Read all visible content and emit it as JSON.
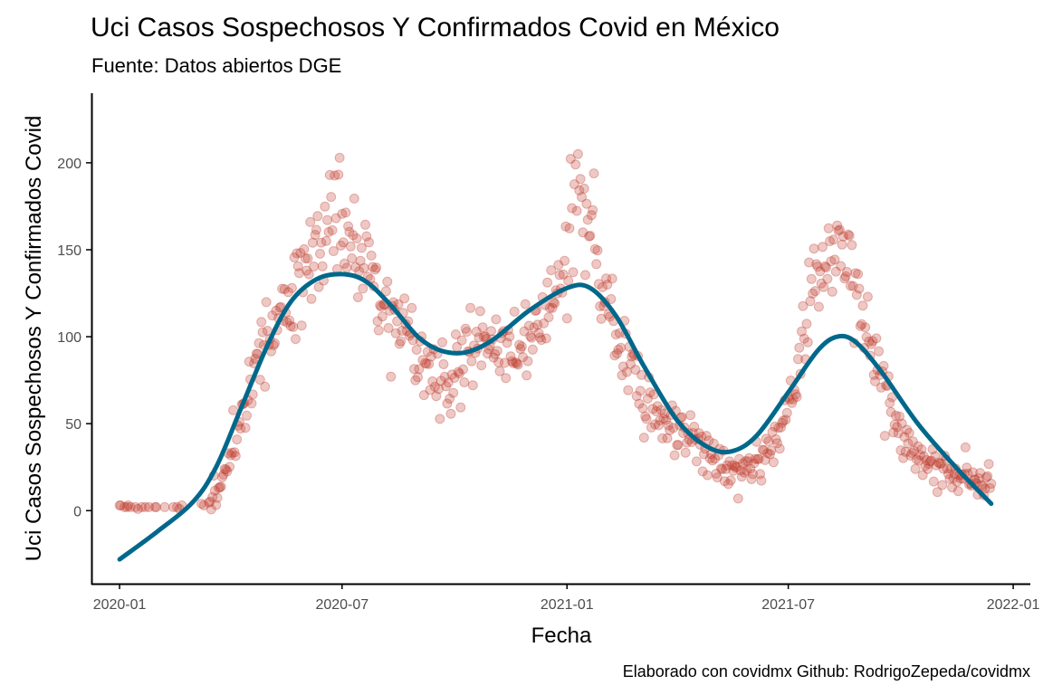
{
  "colors": {
    "points": "#c0392b",
    "smooth": "#00688b",
    "axis": "#000000",
    "tick_text": "#4d4d4d"
  },
  "chart_data": {
    "type": "scatter",
    "title": "Uci Casos Sospechosos Y Confirmados Covid en México",
    "subtitle": "Fuente: Datos abiertos DGE",
    "xlabel": "Fecha",
    "ylabel": "Uci Casos Sospechosos Y Confirmados Covid",
    "caption": "Elaborado con covidmx Github: RodrigoZepeda/covidmx",
    "grid": false,
    "legend": "none",
    "xlim": [
      "2019-12-09",
      "2022-01-15"
    ],
    "ylim": [
      -42,
      240
    ],
    "x_ticks": [
      {
        "date": "2020-01-01",
        "label": "2020-01"
      },
      {
        "date": "2020-07-01",
        "label": "2020-07"
      },
      {
        "date": "2021-01-01",
        "label": "2021-01"
      },
      {
        "date": "2021-07-01",
        "label": "2021-07"
      },
      {
        "date": "2022-01-01",
        "label": "2022-01"
      }
    ],
    "y_ticks": [
      0,
      50,
      100,
      150,
      200
    ],
    "anchors": [
      [
        "2020-01-01",
        1
      ],
      [
        "2020-02-20",
        1
      ],
      [
        "2020-03-10",
        2
      ],
      [
        "2020-03-25",
        15
      ],
      [
        "2020-04-05",
        45
      ],
      [
        "2020-04-20",
        80
      ],
      [
        "2020-05-05",
        100
      ],
      [
        "2020-05-20",
        125
      ],
      [
        "2020-06-05",
        145
      ],
      [
        "2020-06-20",
        160
      ],
      [
        "2020-07-01",
        170
      ],
      [
        "2020-07-10",
        155
      ],
      [
        "2020-07-25",
        135
      ],
      [
        "2020-08-10",
        110
      ],
      [
        "2020-08-25",
        95
      ],
      [
        "2020-09-10",
        80
      ],
      [
        "2020-09-25",
        75
      ],
      [
        "2020-10-10",
        88
      ],
      [
        "2020-10-25",
        95
      ],
      [
        "2020-11-10",
        85
      ],
      [
        "2020-11-25",
        95
      ],
      [
        "2020-12-10",
        105
      ],
      [
        "2020-12-25",
        125
      ],
      [
        "2021-01-08",
        175
      ],
      [
        "2021-01-15",
        180
      ],
      [
        "2021-01-25",
        150
      ],
      [
        "2021-02-05",
        115
      ],
      [
        "2021-02-20",
        85
      ],
      [
        "2021-03-05",
        60
      ],
      [
        "2021-03-20",
        50
      ],
      [
        "2021-04-05",
        45
      ],
      [
        "2021-04-20",
        35
      ],
      [
        "2021-05-05",
        28
      ],
      [
        "2021-05-20",
        22
      ],
      [
        "2021-06-05",
        25
      ],
      [
        "2021-06-20",
        40
      ],
      [
        "2021-07-05",
        70
      ],
      [
        "2021-07-20",
        115
      ],
      [
        "2021-08-05",
        150
      ],
      [
        "2021-08-15",
        155
      ],
      [
        "2021-08-25",
        130
      ],
      [
        "2021-09-10",
        85
      ],
      [
        "2021-09-25",
        55
      ],
      [
        "2021-10-10",
        35
      ],
      [
        "2021-10-25",
        25
      ],
      [
        "2021-11-10",
        20
      ],
      [
        "2021-11-25",
        20
      ],
      [
        "2021-12-14",
        12
      ]
    ],
    "smooth": [
      [
        "2020-01-01",
        -28
      ],
      [
        "2020-02-01",
        -12
      ],
      [
        "2020-03-01",
        5
      ],
      [
        "2020-03-20",
        25
      ],
      [
        "2020-04-10",
        60
      ],
      [
        "2020-05-01",
        95
      ],
      [
        "2020-05-20",
        120
      ],
      [
        "2020-06-10",
        133
      ],
      [
        "2020-07-01",
        136
      ],
      [
        "2020-07-20",
        132
      ],
      [
        "2020-08-10",
        118
      ],
      [
        "2020-09-01",
        100
      ],
      [
        "2020-09-20",
        92
      ],
      [
        "2020-10-10",
        91
      ],
      [
        "2020-11-01",
        98
      ],
      [
        "2020-12-01",
        115
      ],
      [
        "2021-01-01",
        128
      ],
      [
        "2021-01-20",
        128
      ],
      [
        "2021-02-10",
        112
      ],
      [
        "2021-03-05",
        83
      ],
      [
        "2021-04-01",
        52
      ],
      [
        "2021-04-25",
        37
      ],
      [
        "2021-05-15",
        34
      ],
      [
        "2021-06-05",
        43
      ],
      [
        "2021-07-01",
        68
      ],
      [
        "2021-07-25",
        92
      ],
      [
        "2021-08-10",
        100
      ],
      [
        "2021-08-25",
        97
      ],
      [
        "2021-09-15",
        80
      ],
      [
        "2021-10-15",
        50
      ],
      [
        "2021-11-15",
        25
      ],
      [
        "2021-12-14",
        4
      ]
    ]
  }
}
